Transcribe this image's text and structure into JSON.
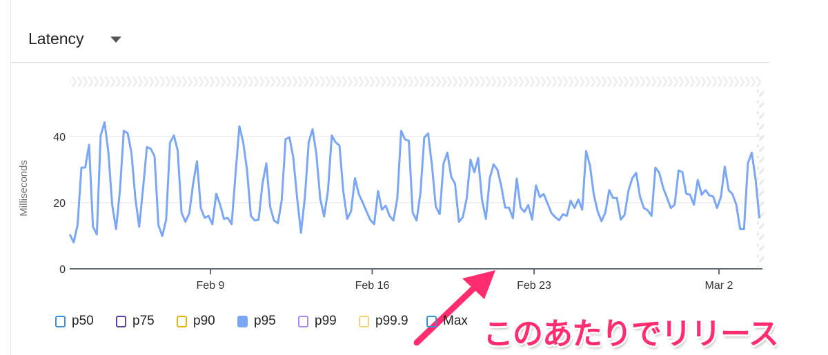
{
  "header": {
    "title": "Latency"
  },
  "legend": [
    {
      "label": "p50",
      "color": "#3b8fd9",
      "active": false
    },
    {
      "label": "p75",
      "color": "#5b3fa8",
      "active": false
    },
    {
      "label": "p90",
      "color": "#e8b400",
      "active": false
    },
    {
      "label": "p95",
      "color": "#7aa7f5",
      "active": true
    },
    {
      "label": "p99",
      "color": "#a58cf0",
      "active": false
    },
    {
      "label": "p99.9",
      "color": "#f5d27a",
      "active": false
    },
    {
      "label": "Max",
      "color": "#3b8fd9",
      "active": false
    }
  ],
  "annotation": {
    "text": "このあたりでリリース",
    "color": "#ff2d6f"
  },
  "chart_data": {
    "type": "line",
    "ylabel": "Milliseconds",
    "ylim": [
      0,
      48
    ],
    "yticks": [
      "0",
      "20",
      "40"
    ],
    "xticks": [
      "Feb 9",
      "Feb 16",
      "Feb 23",
      "Mar 2"
    ],
    "x_start": "Feb 2 22:00",
    "interval_hours": 4,
    "grid": true,
    "series": [
      {
        "name": "p95",
        "color": "#7aa7f5",
        "values": [
          10.4,
          8.0,
          13.2,
          30.6,
          30.6,
          37.5,
          12.8,
          10.4,
          40.3,
          44.3,
          35.4,
          19.4,
          12.0,
          23.6,
          41.7,
          41.0,
          35.1,
          21.5,
          12.7,
          24.3,
          36.8,
          36.3,
          34.0,
          13.2,
          9.9,
          14.9,
          38.1,
          40.3,
          35.8,
          17.0,
          14.2,
          16.7,
          25.7,
          32.5,
          18.4,
          15.4,
          16.0,
          13.5,
          22.7,
          19.4,
          15.1,
          15.4,
          13.5,
          28.5,
          43.1,
          38.2,
          29.9,
          16.0,
          14.6,
          14.9,
          25.7,
          31.9,
          18.8,
          14.6,
          13.8,
          20.8,
          39.2,
          39.7,
          33.7,
          21.5,
          10.9,
          21.5,
          38.2,
          42.2,
          34.7,
          21.2,
          15.8,
          23.6,
          40.3,
          38.2,
          37.3,
          23.3,
          15.1,
          17.4,
          27.4,
          22.6,
          20.1,
          17.4,
          14.8,
          13.5,
          23.5,
          17.9,
          19.1,
          16.0,
          14.6,
          21.2,
          41.7,
          39.1,
          38.7,
          17.0,
          14.6,
          22.9,
          39.7,
          40.9,
          31.3,
          18.8,
          16.5,
          31.8,
          35.1,
          27.8,
          25.7,
          14.2,
          15.6,
          21.2,
          33.0,
          29.2,
          33.5,
          20.8,
          15.1,
          27.4,
          31.6,
          29.9,
          25.0,
          18.5,
          18.5,
          15.3,
          27.3,
          18.5,
          17.2,
          19.3,
          14.9,
          25.2,
          21.7,
          22.6,
          19.8,
          16.9,
          15.6,
          14.7,
          16.5,
          16.0,
          20.6,
          18.4,
          21.0,
          17.9,
          35.6,
          31.3,
          22.6,
          17.4,
          14.4,
          17.0,
          23.8,
          21.4,
          21.4,
          14.9,
          16.3,
          23.6,
          27.4,
          29.0,
          21.9,
          18.4,
          17.7,
          16.0,
          30.6,
          29.0,
          24.6,
          21.5,
          18.4,
          19.4,
          29.7,
          29.2,
          22.7,
          22.4,
          19.4,
          26.9,
          22.4,
          23.8,
          22.2,
          21.9,
          18.4,
          21.7,
          30.9,
          23.8,
          22.6,
          19.4,
          12.0,
          12.0,
          31.9,
          35.1,
          27.1,
          15.3
        ]
      }
    ]
  }
}
